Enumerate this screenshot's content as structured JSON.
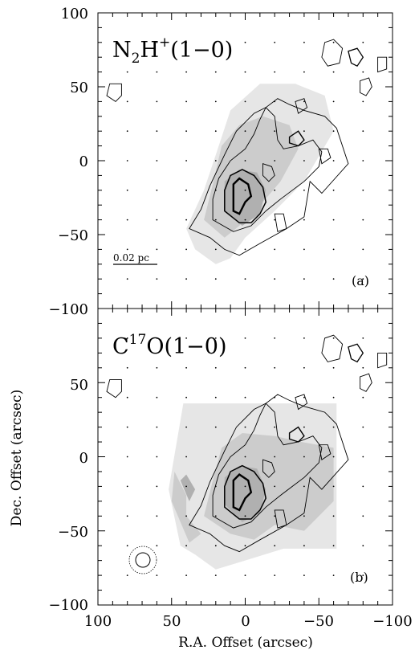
{
  "figure": {
    "xlabel": "R.A. Offset (arcsec)",
    "ylabel": "Dec. Offset (arcsec)"
  },
  "colors": {
    "frame": "#000000",
    "shade_light": "#e6e6e6",
    "shade_mid": "#cccccc",
    "shade_dark": "#b0b0b0",
    "contour": "#000000"
  },
  "chart_data": [
    {
      "type": "contour",
      "panel": "(a)",
      "title_parts": [
        "N",
        "2",
        "H",
        "+",
        "(1−0)"
      ],
      "xlim": [
        100,
        -100
      ],
      "ylim": [
        -100,
        100
      ],
      "xticks": [
        100,
        50,
        0,
        -50,
        -100
      ],
      "yticks": [
        100,
        50,
        0,
        -50,
        -100
      ],
      "x_tick_labels_shown": false,
      "y_tick_labels": [
        "100",
        "50",
        "0",
        "−50",
        "−100"
      ],
      "scalebar_label": "0.02 pc",
      "scalebar_arcsec": 20,
      "grid_dots": true
    },
    {
      "type": "contour",
      "panel": "(b)",
      "title_parts": [
        "C",
        "17",
        "O(1−0)"
      ],
      "xlim": [
        100,
        -100
      ],
      "ylim": [
        -100,
        100
      ],
      "xticks": [
        100,
        50,
        0,
        -50,
        -100
      ],
      "yticks": [
        100,
        50,
        0,
        -50,
        -100
      ],
      "x_tick_labels": [
        "100",
        "50",
        "0",
        "−50",
        "−100"
      ],
      "y_tick_labels": [
        "50",
        "0",
        "−50",
        "−100"
      ],
      "beam": {
        "ra": 72,
        "dec": -70,
        "inner_radius": 5,
        "outer_radius": 9
      },
      "grid_dots": true
    }
  ]
}
